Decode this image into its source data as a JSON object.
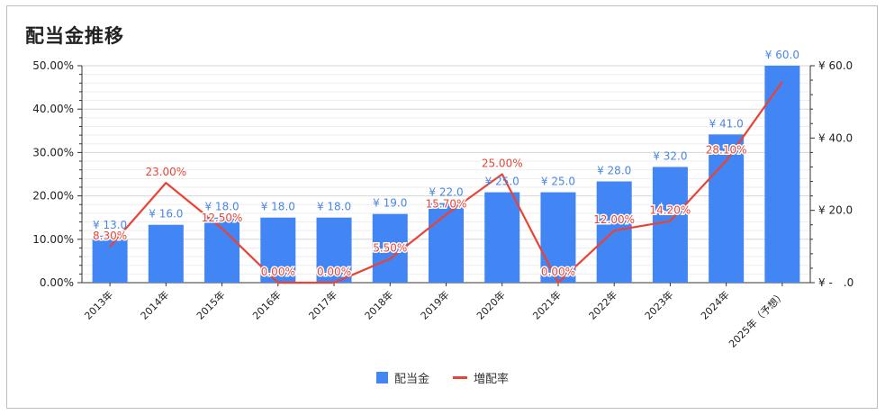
{
  "colors": {
    "bar": "#4285f4",
    "line": "#ea4335",
    "bar_label": "#4a86e8",
    "line_label": "#ea4335",
    "axis": "#333333",
    "grid": "#e0e0e0"
  },
  "chart_data": {
    "type": "bar",
    "title": "配当金推移",
    "categories": [
      "2013年",
      "2014年",
      "2015年",
      "2016年",
      "2017年",
      "2018年",
      "2019年",
      "2020年",
      "2021年",
      "2022年",
      "2023年",
      "2024年",
      "2025年（予想）"
    ],
    "series": [
      {
        "name": "配当金",
        "type": "bar",
        "axis": "right",
        "values": [
          13,
          16,
          18,
          18,
          18,
          19,
          22,
          25,
          25,
          28,
          32,
          41,
          60
        ],
        "labels": [
          "¥ 13.0",
          "¥ 16.0",
          "¥ 18.0",
          "¥ 18.0",
          "¥ 18.0",
          "¥ 19.0",
          "¥ 22.0",
          "¥ 25.0",
          "¥ 25.0",
          "¥ 28.0",
          "¥ 32.0",
          "¥ 41.0",
          "¥ 60.0"
        ]
      },
      {
        "name": "増配率",
        "type": "line",
        "axis": "left",
        "values": [
          8.3,
          23.0,
          12.5,
          0.0,
          0.0,
          5.5,
          15.7,
          25.0,
          0.0,
          12.0,
          14.2,
          28.1,
          46.3
        ],
        "labels": [
          "8.30%",
          "23.00%",
          "12.50%",
          "0.00%",
          "0.00%",
          "5.50%",
          "15.70%",
          "25.00%",
          "0.00%",
          "12.00%",
          "14.20%",
          "28.10%",
          ""
        ]
      }
    ],
    "yleft": {
      "lim": [
        0,
        50
      ],
      "ticks": [
        "0.00%",
        "10.00%",
        "20.00%",
        "30.00%",
        "40.00%",
        "50.00%"
      ]
    },
    "yright": {
      "lim": [
        0,
        60
      ],
      "ticks": [
        "¥ -　.0",
        "¥ 20.0",
        "¥ 40.0",
        "¥ 60.0"
      ]
    },
    "grid": true,
    "legend_position": "bottom"
  }
}
